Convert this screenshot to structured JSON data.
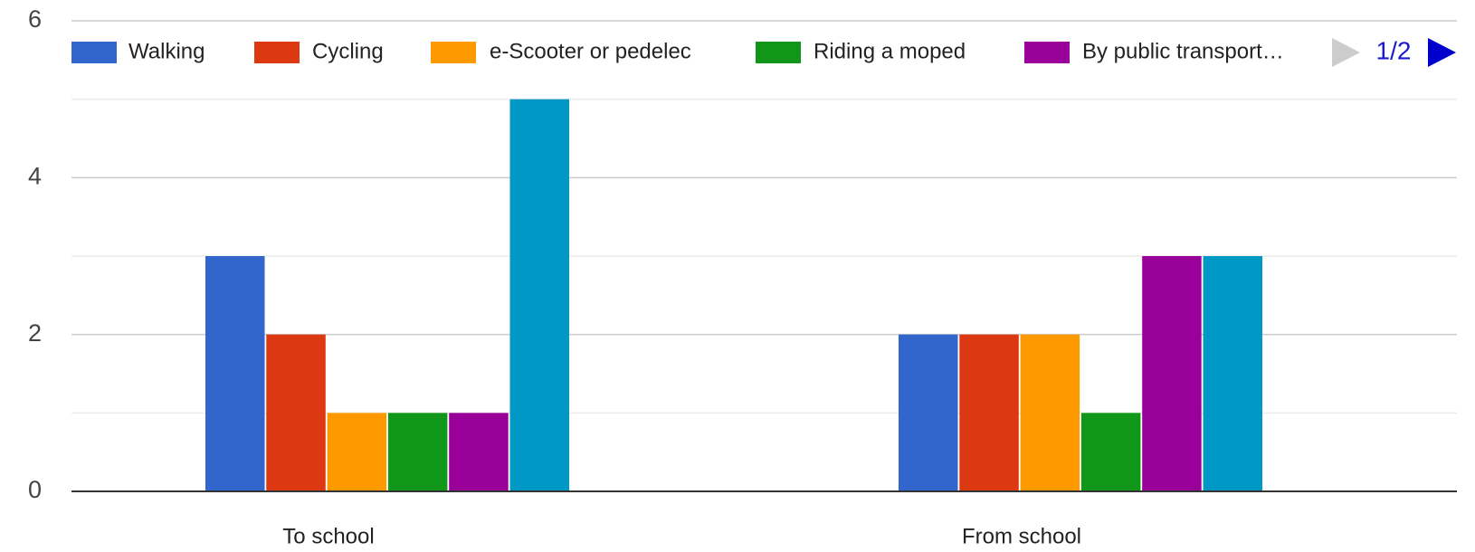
{
  "chart_data": {
    "type": "bar",
    "categories": [
      "To school",
      "From school"
    ],
    "series": [
      {
        "name": "Walking",
        "color": "#3366cc",
        "values": [
          3,
          2
        ]
      },
      {
        "name": "Cycling",
        "color": "#dc3912",
        "values": [
          2,
          2
        ]
      },
      {
        "name": "e-Scooter or pedelec",
        "color": "#ff9900",
        "values": [
          1,
          2
        ]
      },
      {
        "name": "Riding a moped",
        "color": "#109618",
        "values": [
          1,
          1
        ]
      },
      {
        "name": "By public transport…",
        "color": "#990099",
        "values": [
          1,
          3
        ]
      },
      {
        "color": "#0099c6",
        "values": [
          5,
          3
        ]
      },
      {
        "color": "#dd4477",
        "values": [
          0,
          0
        ]
      }
    ],
    "ylim": [
      0,
      6
    ],
    "yticks": [
      0,
      2,
      4,
      6
    ],
    "minor_yticks": [
      1,
      3,
      5
    ],
    "grid": true,
    "legend": "top",
    "legend_page": "1/2"
  }
}
